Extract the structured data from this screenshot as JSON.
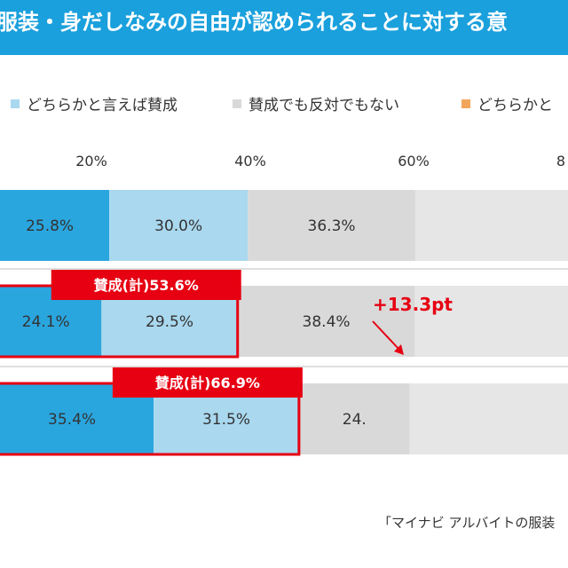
{
  "header": {
    "title": "服装・身だしなみの自由が認められることに対する意"
  },
  "colors": {
    "title_bg": "#1aa0dc",
    "strong_agree": "#2aa6df",
    "somewhat_agree": "#a9d8ef",
    "neutral": "#d9d9d9",
    "somewhat_disagree": "#f2a65a",
    "highlight": "#e60012"
  },
  "chart_data": {
    "type": "bar",
    "orientation": "horizontal",
    "stacked": true,
    "x_ticks": [
      "20%",
      "40%",
      "60%",
      "8"
    ],
    "xlim": [
      0,
      100
    ],
    "legend": [
      {
        "label": "どちらかと言えば賛成",
        "color": "#a9d8ef"
      },
      {
        "label": "賛成でも反対でもない",
        "color": "#d9d9d9"
      },
      {
        "label": "どちらかと",
        "color": "#f2a65a"
      }
    ],
    "rows": [
      {
        "segments": [
          {
            "value": 25.8,
            "label": "25.8%"
          },
          {
            "value": 30.0,
            "label": "30.0%"
          },
          {
            "value": 36.3,
            "label": "36.3%"
          }
        ]
      },
      {
        "segments": [
          {
            "value": 24.1,
            "label": "24.1%"
          },
          {
            "value": 29.5,
            "label": "29.5%"
          },
          {
            "value": 38.4,
            "label": "38.4%"
          }
        ],
        "callout": "賛成(計)53.6%"
      },
      {
        "segments": [
          {
            "value": 35.4,
            "label": "35.4%"
          },
          {
            "value": 31.5,
            "label": "31.5%"
          },
          {
            "value": 24.0,
            "label": "24."
          }
        ],
        "callout": "賛成(計)66.9%"
      }
    ],
    "annotation": "+13.3pt"
  },
  "footer": {
    "source": "「マイナビ アルバイトの服装"
  }
}
